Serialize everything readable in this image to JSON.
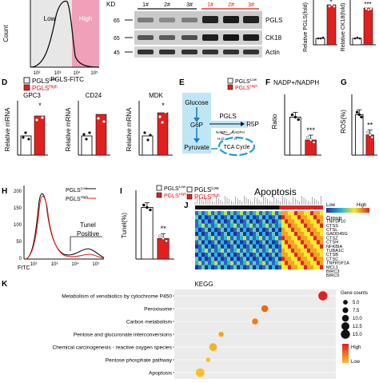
{
  "panels": {
    "a": {
      "ylabel": "Count",
      "xlabel": "PGLS-FITC",
      "gates": [
        "Low",
        "High"
      ],
      "ticks": [
        "10²",
        "10³",
        "10⁴",
        "10⁵"
      ]
    },
    "b": {
      "kd_label": "KD",
      "mw": [
        "65",
        "65",
        "45"
      ],
      "lanes": [
        "1#",
        "2#",
        "3#",
        "1#",
        "2#",
        "3#"
      ],
      "bands": [
        "PGLS",
        "CK18",
        "Actin"
      ]
    },
    "c": {
      "charts": [
        {
          "ylabel": "Relative PGLS(fold)",
          "sig": "*",
          "values": [
            1.0,
            4.1
          ]
        },
        {
          "ylabel": "Relative CK18(fold)",
          "sig": "***",
          "values": [
            1.0,
            3.1
          ]
        }
      ]
    },
    "d": {
      "letter": "D",
      "ylabel": "Relative mRNA",
      "legend": [
        "PGLS",
        "PGLS"
      ],
      "legend_sup": [
        "Low",
        "High"
      ],
      "genes": [
        {
          "name": "GPC3",
          "sig": "*",
          "values": [
            1.0,
            2.0
          ]
        },
        {
          "name": "CD24",
          "sig": "",
          "values": [
            1.0,
            2.2
          ]
        },
        {
          "name": "MDK",
          "sig": "*",
          "values": [
            1.0,
            2.3
          ]
        }
      ]
    },
    "e": {
      "letter": "E",
      "nodes": [
        "Glucose",
        "G6P",
        "Pyruvate",
        "PGLS",
        "R5P",
        "TCA Cycle",
        "NADP+",
        "NADPH",
        "H₂O",
        "H⁺"
      ],
      "legend": [
        "PGLS",
        "PGLS"
      ],
      "legend_sup": [
        "Low",
        "High"
      ]
    },
    "f": {
      "letter": "F",
      "title": "NADP+/NADPH",
      "ylabel": "Ratio",
      "sig": "***",
      "values": [
        5.0,
        2.0
      ]
    },
    "g": {
      "letter": "G",
      "ylabel": "ROS(%)",
      "sig": "**",
      "values": [
        20,
        10
      ]
    },
    "h": {
      "letter": "H",
      "xlabel": "FITC",
      "legend": [
        "PGLS",
        "PGLS"
      ],
      "legend_sup": [
        "Low",
        "High"
      ],
      "annotation": [
        "Tunel",
        "Positive"
      ],
      "yticks": [
        "200",
        "150",
        "100",
        "50",
        "0"
      ],
      "xticks": [
        "10²",
        "10³",
        "10⁴",
        "10⁵"
      ]
    },
    "i": {
      "letter": "I",
      "ylabel": "Tunel(%)",
      "sig": "**",
      "legend": [
        "PGLS",
        "PGLS"
      ],
      "legend_sup": [
        "Low",
        "High"
      ],
      "values": [
        15,
        6
      ]
    },
    "j": {
      "letter": "J",
      "title": "Apoptosis",
      "legend": [
        "PGLS",
        "PGLS"
      ],
      "legend_sup": [
        "Low",
        "High"
      ],
      "color_legend": [
        "Low",
        "High"
      ],
      "group_label": "Group",
      "genes": [
        "TNFSF10",
        "CTSS",
        "CTSL",
        "GADD45G",
        "CTSZ",
        "CTSH",
        "NFKBIA",
        "TUBA1C",
        "CTSB",
        "CTSC",
        "TNFRSF1A",
        "MCL1",
        "BIRC3",
        "BIRC5"
      ]
    },
    "k": {
      "letter": "K",
      "title": "KEGG",
      "size_title": "Gene counts",
      "size_values": [
        "5.0",
        "7.5",
        "10.0",
        "12.5",
        "15.0"
      ],
      "color_title": [
        "High",
        "Low"
      ]
    }
  },
  "chart_data": [
    {
      "type": "bar",
      "title": "NADP+/NADPH",
      "categories": [
        "PGLS Low",
        "PGLS High"
      ],
      "values": [
        5.0,
        2.0
      ],
      "ylabel": "Ratio",
      "ylim": [
        0,
        8
      ]
    },
    {
      "type": "bar",
      "categories": [
        "PGLS Low",
        "PGLS High"
      ],
      "values": [
        20,
        10
      ],
      "ylabel": "ROS(%)",
      "ylim": [
        0,
        30
      ]
    },
    {
      "type": "bar",
      "categories": [
        "PGLS Low",
        "PGLS High"
      ],
      "values": [
        15,
        6
      ],
      "ylabel": "Tunel(%)",
      "ylim": [
        0,
        20
      ]
    },
    {
      "type": "scatter",
      "title": "KEGG",
      "categories": [
        "Metabolism of xenobiotics by cytochrome P450",
        "Peroxisome",
        "Carbon metabolism",
        "Pentose and glucuronate interconversions",
        "Chemical carcinogenesis - reactive oxygen species",
        "Pentose phosphate pathway",
        "Apoptosis"
      ],
      "x": [
        0.92,
        0.56,
        0.5,
        0.29,
        0.24,
        0.21,
        0.16
      ],
      "sizes": [
        15.0,
        10.0,
        8.0,
        6.0,
        12.0,
        5.0,
        14.0
      ],
      "colors": [
        "#e02020",
        "#f06a10",
        "#f47a14",
        "#f6a51c",
        "#f7b324",
        "#f9c02a",
        "#f9c02a"
      ]
    }
  ]
}
